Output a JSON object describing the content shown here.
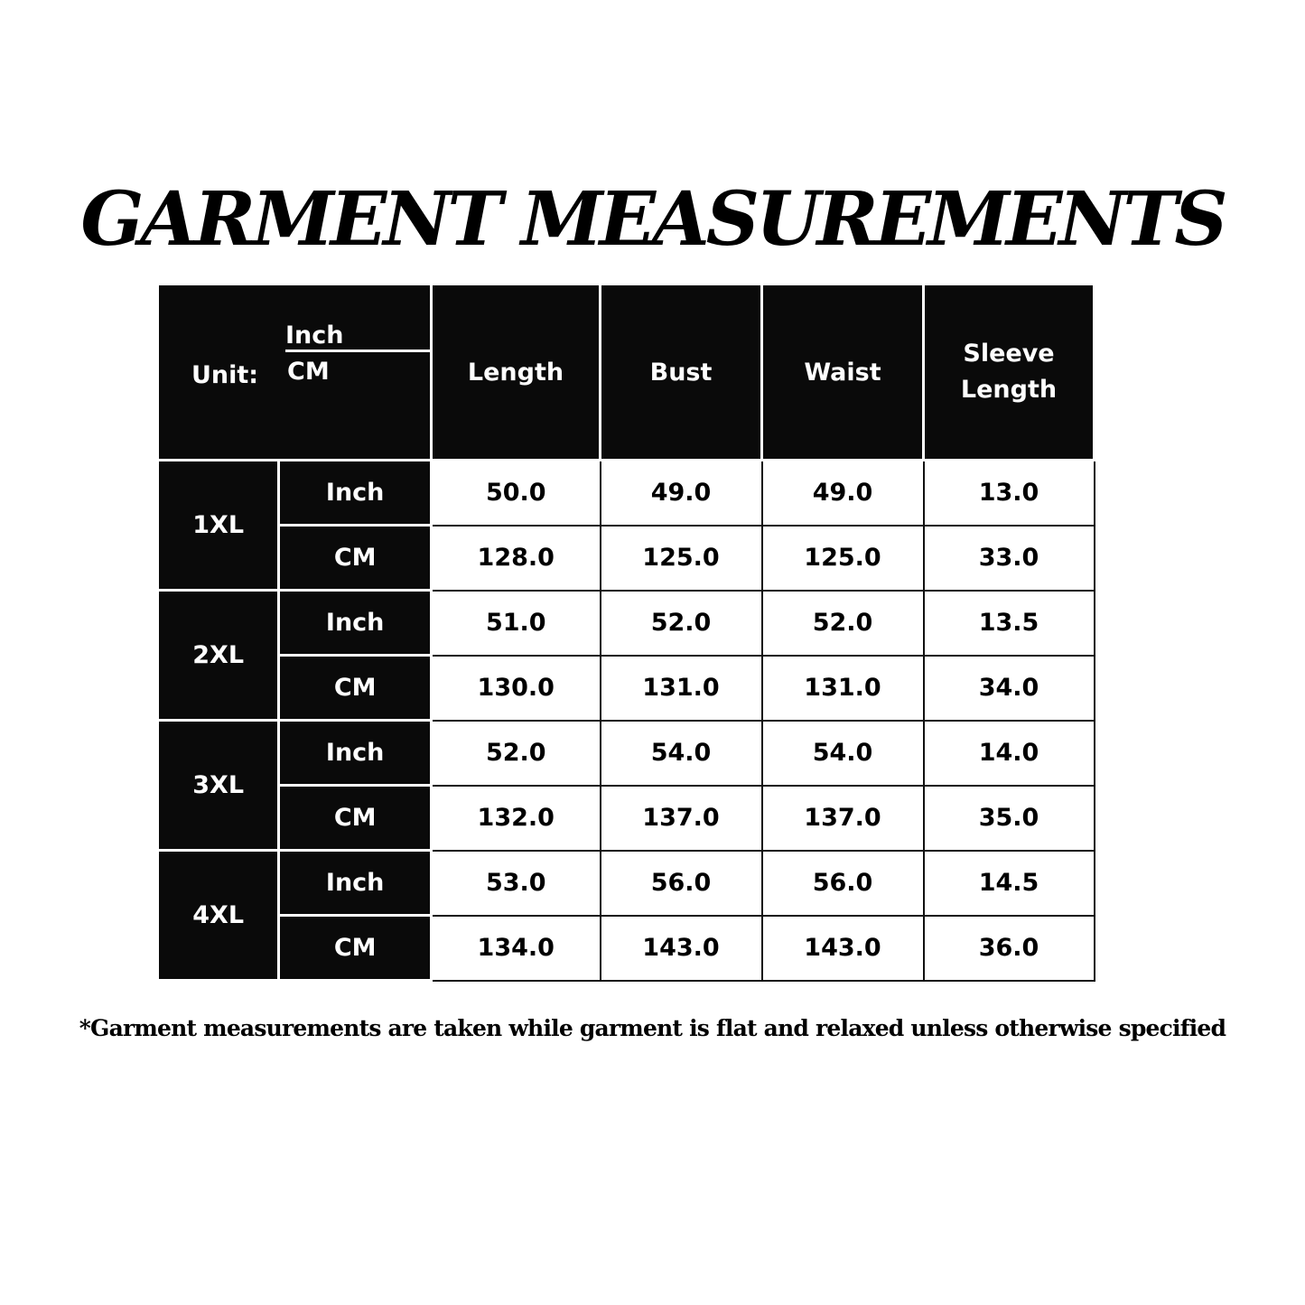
{
  "title": "GARMENT MEASUREMENTS",
  "header": {
    "unit_label": "Unit:",
    "unit_top": "Inch",
    "unit_bottom": "CM",
    "columns": [
      "Length",
      "Bust",
      "Waist",
      "Sleeve Length"
    ]
  },
  "rows": [
    {
      "size": "1XL",
      "inch": [
        "50.0",
        "49.0",
        "49.0",
        "13.0"
      ],
      "cm": [
        "128.0",
        "125.0",
        "125.0",
        "33.0"
      ]
    },
    {
      "size": "2XL",
      "inch": [
        "51.0",
        "52.0",
        "52.0",
        "13.5"
      ],
      "cm": [
        "130.0",
        "131.0",
        "131.0",
        "34.0"
      ]
    },
    {
      "size": "3XL",
      "inch": [
        "52.0",
        "54.0",
        "54.0",
        "14.0"
      ],
      "cm": [
        "132.0",
        "137.0",
        "137.0",
        "35.0"
      ]
    },
    {
      "size": "4XL",
      "inch": [
        "53.0",
        "56.0",
        "56.0",
        "14.5"
      ],
      "cm": [
        "134.0",
        "143.0",
        "143.0",
        "36.0"
      ]
    }
  ],
  "unit_inch": "Inch",
  "unit_cm": "CM",
  "note": "*Garment measurements are taken while garment is flat and relaxed unless otherwise specified"
}
